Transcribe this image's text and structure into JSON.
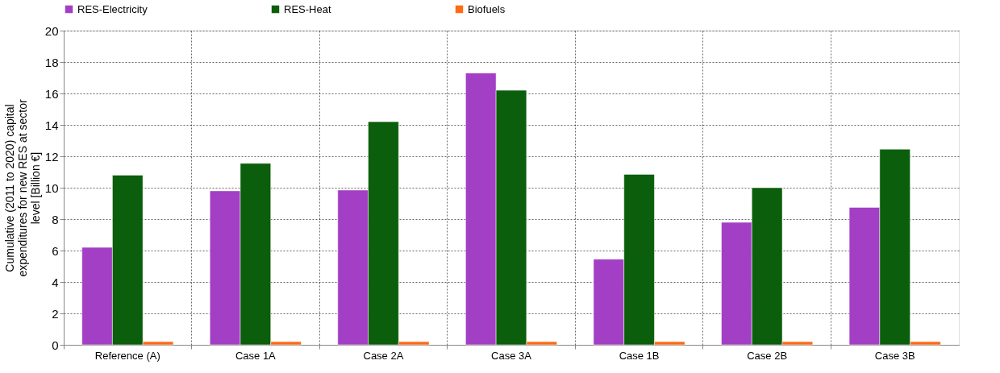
{
  "chart_data": {
    "type": "bar",
    "ylabel": "Cumulative (2011 to 2020) capital expenditures for new RES at sector level [Billion €]",
    "categories": [
      "Reference (A)",
      "Case 1A",
      "Case 2A",
      "Case 3A",
      "Case 1B",
      "Case 2B",
      "Case 3B"
    ],
    "series": [
      {
        "name": "RES-Electricity",
        "color": "#a23fc4",
        "values": [
          6.2,
          9.8,
          9.85,
          17.3,
          5.45,
          7.8,
          8.75
        ]
      },
      {
        "name": "RES-Heat",
        "color": "#0b5e0b",
        "values": [
          10.8,
          11.55,
          14.2,
          16.2,
          10.85,
          10.0,
          12.45
        ]
      },
      {
        "name": "Biofuels",
        "color": "#ff6a13",
        "values": [
          0.2,
          0.2,
          0.2,
          0.2,
          0.2,
          0.2,
          0.2
        ]
      }
    ],
    "ylim": [
      0,
      20
    ],
    "yticks": [
      0,
      2,
      4,
      6,
      8,
      10,
      12,
      14,
      16,
      18,
      20
    ],
    "grid": true,
    "legend": "top"
  }
}
